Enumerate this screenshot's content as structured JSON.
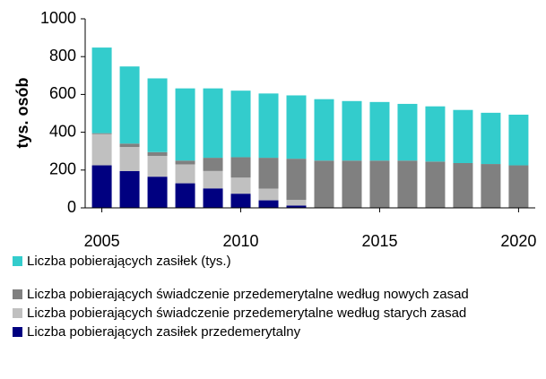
{
  "chart_data": {
    "type": "stacked-bar",
    "x": [
      2005,
      2006,
      2007,
      2008,
      2009,
      2010,
      2011,
      2012,
      2013,
      2014,
      2015,
      2016,
      2017,
      2018,
      2019,
      2020
    ],
    "y_label": "tys. osób",
    "series": [
      {
        "name": "Liczba pobierających zasiłek (tys.)",
        "color": "#33cccc",
        "values": [
          453,
          408,
          390,
          382,
          367,
          352,
          340,
          335,
          325,
          315,
          310,
          300,
          292,
          281,
          271,
          268
        ]
      },
      {
        "name": "Liczba pobierających świadczenie przedemerytalne według nowych zasad",
        "color": "#808080",
        "values": [
          5,
          18,
          20,
          20,
          70,
          108,
          163,
          218,
          250,
          250,
          250,
          250,
          245,
          237,
          232,
          225
        ]
      },
      {
        "name": "Liczba pobierających świadczenie przedemerytalne według starych zasad",
        "color": "#c0c0c0",
        "values": [
          165,
          127,
          110,
          100,
          92,
          85,
          62,
          30,
          0,
          0,
          0,
          0,
          0,
          0,
          0,
          0
        ]
      },
      {
        "name": "Liczba pobierających zasiłek przedemerytalny",
        "color": "#000080",
        "values": [
          225,
          195,
          165,
          130,
          103,
          75,
          40,
          12,
          0,
          0,
          0,
          0,
          0,
          0,
          0,
          0
        ]
      }
    ],
    "xlim": [
      2004.4,
      2020.6
    ],
    "xticks": [
      2005,
      2010,
      2015,
      2020
    ],
    "ylim": [
      0,
      1000
    ],
    "yticks": [
      0,
      200,
      400,
      600,
      800,
      1000
    ]
  }
}
